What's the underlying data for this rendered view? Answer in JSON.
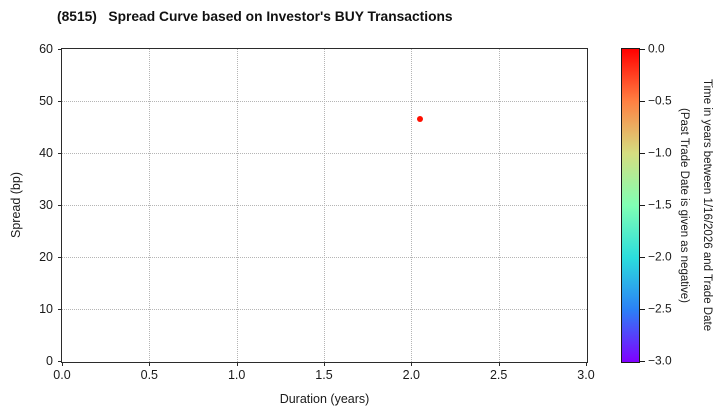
{
  "chart_data": {
    "type": "scatter",
    "title": "(8515)   Spread Curve based on Investor's BUY Transactions",
    "xlabel": "Duration (years)",
    "ylabel": "Spread (bp)",
    "xlim": [
      0.0,
      3.0
    ],
    "ylim": [
      0,
      60
    ],
    "xticks": [
      0.0,
      0.5,
      1.0,
      1.5,
      2.0,
      2.5,
      3.0
    ],
    "xtick_labels": [
      "0.0",
      "0.5",
      "1.0",
      "1.5",
      "2.0",
      "2.5",
      "3.0"
    ],
    "yticks": [
      0,
      10,
      20,
      30,
      40,
      50,
      60
    ],
    "ytick_labels": [
      "0",
      "10",
      "20",
      "30",
      "40",
      "50",
      "60"
    ],
    "grid": true,
    "grid_style": "dotted",
    "legend": null,
    "points": [
      {
        "x": 2.05,
        "y": 46.5,
        "color_value": 0.0,
        "color": "#ff0f00"
      }
    ],
    "colorbar": {
      "label_line1": "Time in years between 1/16/2026 and Trade Date",
      "label_line2": "(Past Trade Date is given as negative)",
      "range_top": 0.0,
      "range_bottom": -3.0,
      "ticks": [
        0.0,
        -0.5,
        -1.0,
        -1.5,
        -2.0,
        -2.5,
        -3.0
      ],
      "tick_labels": [
        "0.0",
        "−0.5",
        "−1.0",
        "−1.5",
        "−2.0",
        "−2.5",
        "−3.0"
      ],
      "colormap": "rainbow",
      "gradient_stops": [
        "#ff0000",
        "#ff8042",
        "#d5dd80",
        "#80ffb4",
        "#2bdddd",
        "#2b80f6",
        "#8000ff"
      ]
    },
    "colors": {
      "point_red": "#ff0f00",
      "grid": "#b5b5b5",
      "spine": "#2b2b2b",
      "text": "#1a1a1a"
    }
  }
}
